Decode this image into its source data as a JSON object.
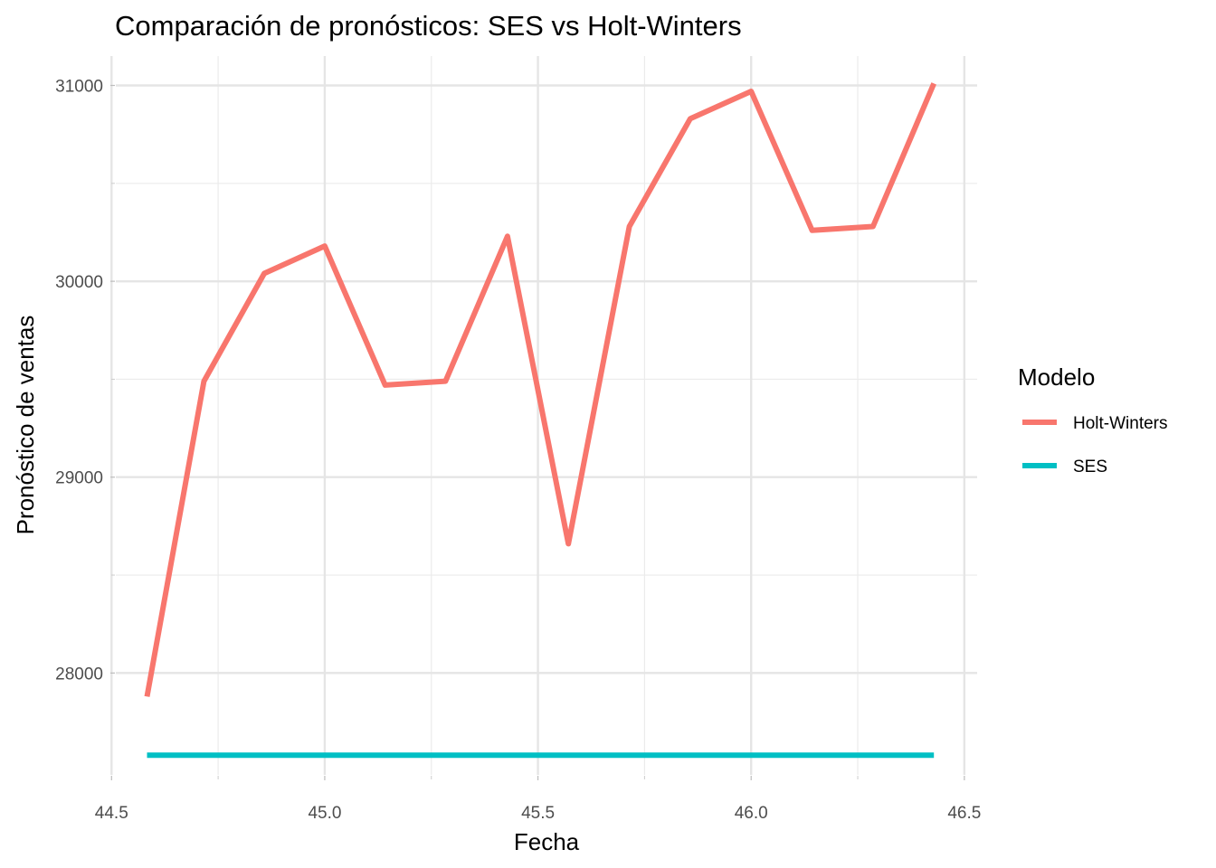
{
  "chart_data": {
    "type": "line",
    "title": "Comparación de pronósticos: SES vs Holt-Winters",
    "xlabel": "Fecha",
    "ylabel": "Pronóstico de ventas",
    "xlim": [
      44.51,
      46.53
    ],
    "ylim": [
      27480,
      31150
    ],
    "grid": true,
    "x_ticks": [
      44.5,
      45.0,
      45.5,
      46.0,
      46.5
    ],
    "x_tick_labels": [
      "44.5",
      "45.0",
      "45.5",
      "46.0",
      "46.5"
    ],
    "x_minor_ticks": [
      44.75,
      45.25,
      45.75,
      46.25
    ],
    "y_ticks": [
      28000,
      29000,
      30000,
      31000
    ],
    "y_tick_labels": [
      "28000",
      "29000",
      "30000",
      "31000"
    ],
    "y_minor_ticks": [
      28500,
      29500,
      30500
    ],
    "legend": {
      "title": "Modelo",
      "position": "right"
    },
    "series": [
      {
        "name": "Holt-Winters",
        "color": "#F8766D",
        "x": [
          44.5833,
          44.7167,
          44.8583,
          45.0,
          45.1417,
          45.2833,
          45.4286,
          45.5714,
          45.7143,
          45.8571,
          46.0,
          46.1429,
          46.2857,
          46.4286
        ],
        "values": [
          27880,
          29490,
          30040,
          30180,
          29470,
          29490,
          30230,
          28660,
          30280,
          30830,
          30970,
          30260,
          30280,
          31010
        ]
      },
      {
        "name": "SES",
        "color": "#00BFC4",
        "x": [
          44.5833,
          44.7167,
          44.8583,
          45.0,
          45.1417,
          45.2833,
          45.4286,
          45.5714,
          45.7143,
          45.8571,
          46.0,
          46.1429,
          46.2857,
          46.4286
        ],
        "values": [
          27580,
          27580,
          27580,
          27580,
          27580,
          27580,
          27580,
          27580,
          27580,
          27580,
          27580,
          27580,
          27580,
          27580
        ]
      }
    ]
  }
}
